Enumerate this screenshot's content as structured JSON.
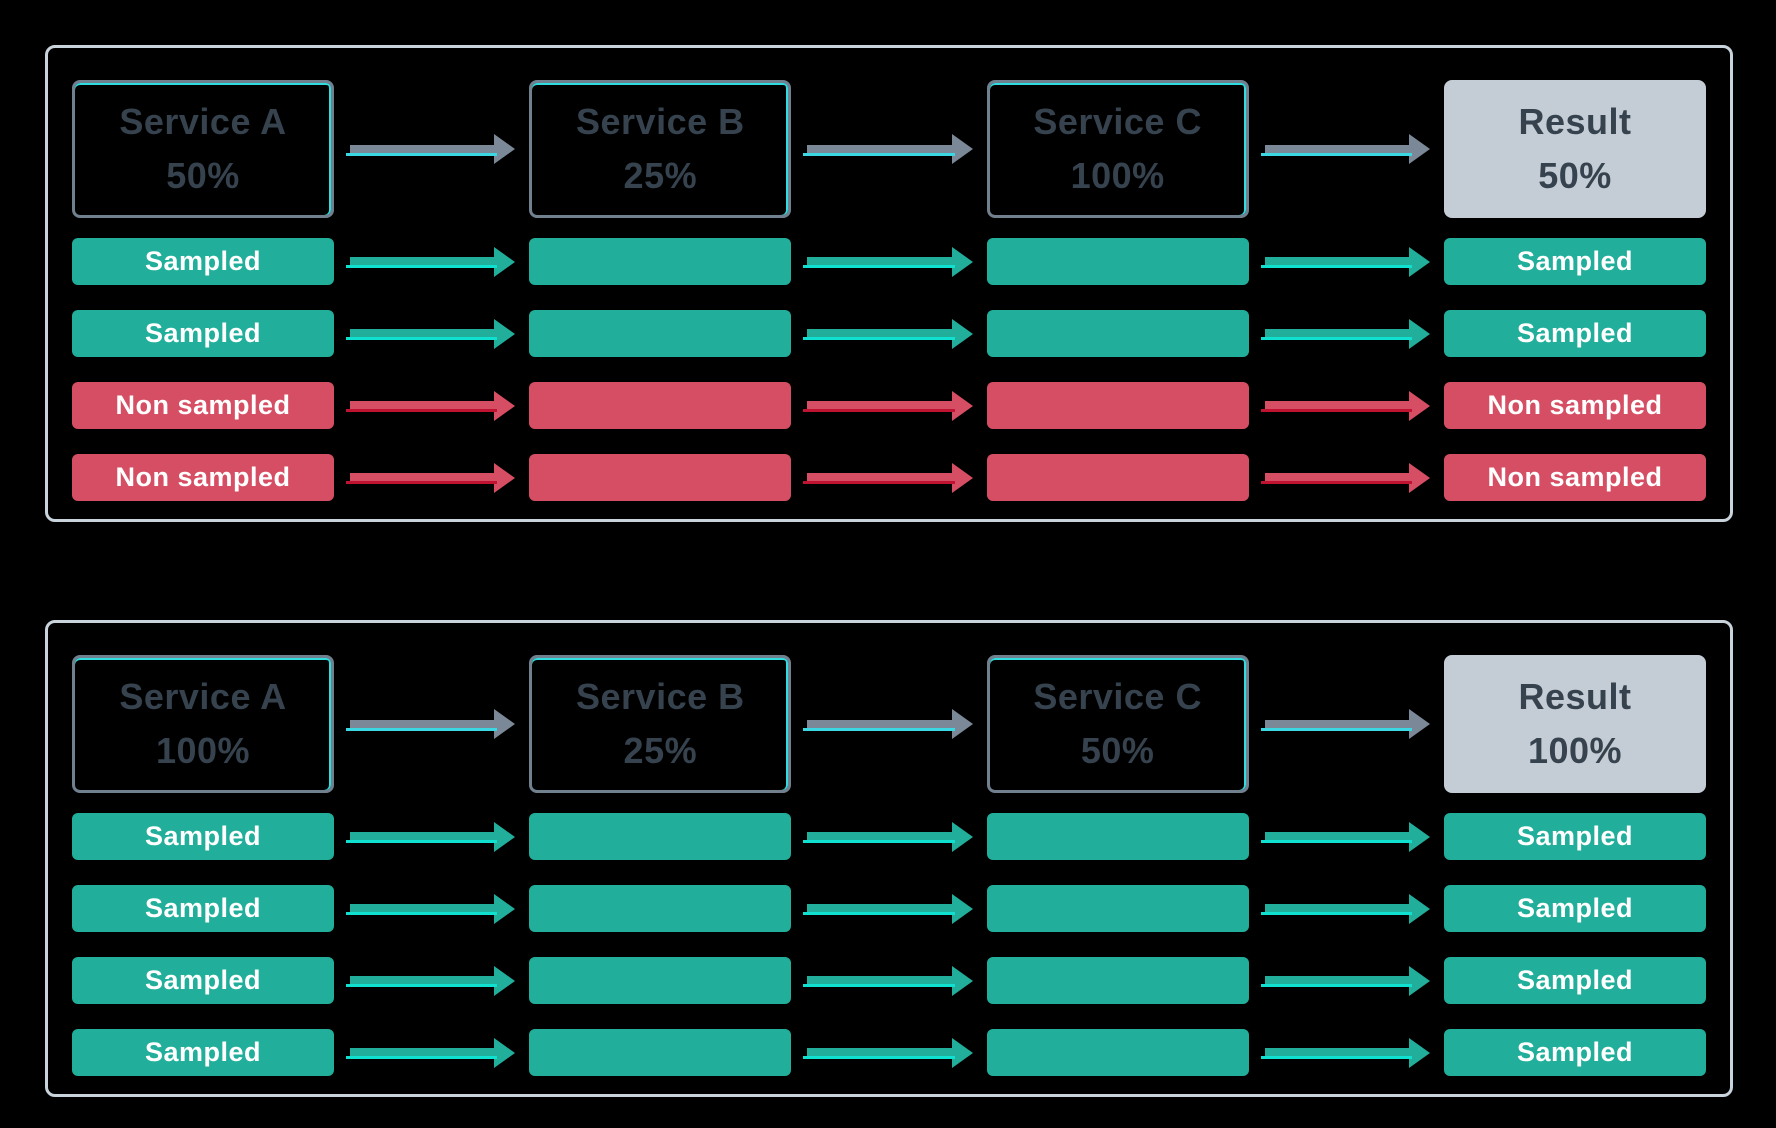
{
  "colors": {
    "background": "#000000",
    "panel-border": "#c9d3dc",
    "box-border": "#71808f",
    "box-accent": "#2fdce0",
    "text-dark": "#36434f",
    "result-bg": "#c4cdd5",
    "pill-text": "#ffffff",
    "green": "#21af9b",
    "red": "#d64e63",
    "gray-arrow": "#7b8897",
    "cyan-line": "#3bd8e4",
    "teal-line": "#10e0cf",
    "red-line": "#c01331"
  },
  "panels": [
    {
      "services": [
        {
          "label": "Service A",
          "rate": "50%"
        },
        {
          "label": "Service B",
          "rate": "25%"
        },
        {
          "label": "Service C",
          "rate": "100%"
        },
        {
          "label": "Result",
          "rate": "50%"
        }
      ],
      "rows": [
        {
          "status": "sampled",
          "left": "Sampled",
          "right": "Sampled"
        },
        {
          "status": "sampled",
          "left": "Sampled",
          "right": "Sampled"
        },
        {
          "status": "non-sampled",
          "left": "Non sampled",
          "right": "Non sampled"
        },
        {
          "status": "non-sampled",
          "left": "Non sampled",
          "right": "Non sampled"
        }
      ]
    },
    {
      "services": [
        {
          "label": "Service A",
          "rate": "100%"
        },
        {
          "label": "Service B",
          "rate": "25%"
        },
        {
          "label": "Service C",
          "rate": "50%"
        },
        {
          "label": "Result",
          "rate": "100%"
        }
      ],
      "rows": [
        {
          "status": "sampled",
          "left": "Sampled",
          "right": "Sampled"
        },
        {
          "status": "sampled",
          "left": "Sampled",
          "right": "Sampled"
        },
        {
          "status": "sampled",
          "left": "Sampled",
          "right": "Sampled"
        },
        {
          "status": "sampled",
          "left": "Sampled",
          "right": "Sampled"
        }
      ]
    }
  ]
}
